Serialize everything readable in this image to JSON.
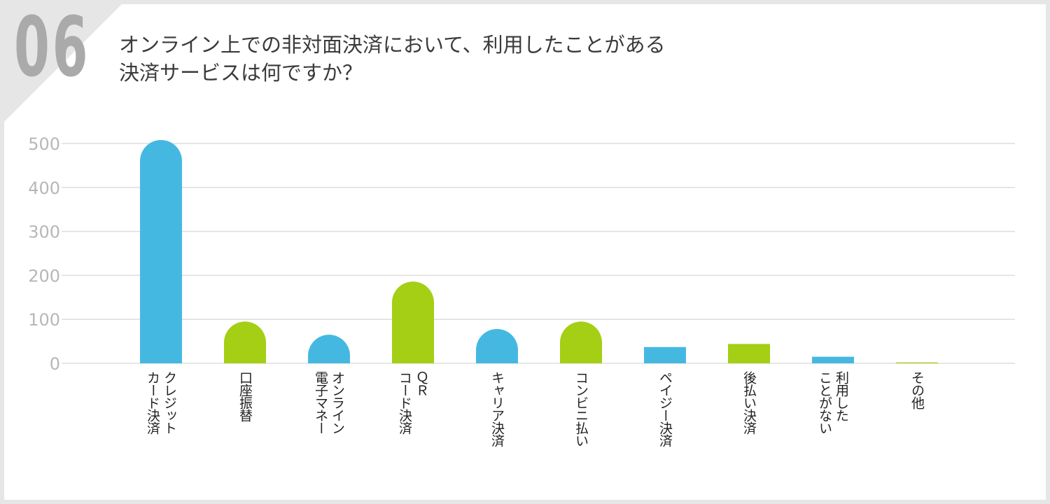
{
  "question_number": "06",
  "title_lines": [
    "オンライン上での非対面決済において、利用したことがある",
    "決済サービスは何ですか？"
  ],
  "colors": {
    "blue": "#45b8e2",
    "green": "#a4cf14",
    "grid": "#dedede",
    "tick": "#b7b7b7"
  },
  "chart_data": {
    "type": "bar",
    "title": "オンライン上での非対面決済において、利用したことがある決済サービスは何ですか？",
    "xlabel": "",
    "ylabel": "",
    "ylim": [
      0,
      500
    ],
    "yticks": [
      "0",
      "100",
      "200",
      "300",
      "400",
      "500"
    ],
    "grid": true,
    "legend": "none",
    "categories": [
      "クレジットカード決済",
      "口座振替",
      "オンライン電子マネー",
      "ＱＲコード決済",
      "キャリア決済",
      "コンビニ払い",
      "ペイジー決済",
      "後払い決済",
      "利用したことがない",
      "その他"
    ],
    "category_label_lines": [
      [
        "クレジット",
        "カード決済"
      ],
      [
        "口座振替"
      ],
      [
        "オンライン",
        "電子マネー"
      ],
      [
        "ＱＲ",
        "コード決済"
      ],
      [
        "キャリア決済"
      ],
      [
        "コンビニ払い"
      ],
      [
        "ペイジー決済"
      ],
      [
        "後払い決済"
      ],
      [
        "利用した",
        "ことがない"
      ],
      [
        "その他"
      ]
    ],
    "values": [
      508,
      95,
      65,
      186,
      78,
      95,
      37,
      44,
      15,
      2
    ],
    "bar_colors": [
      "#45b8e2",
      "#a4cf14",
      "#45b8e2",
      "#a4cf14",
      "#45b8e2",
      "#a4cf14",
      "#45b8e2",
      "#a4cf14",
      "#45b8e2",
      "#a4cf14"
    ]
  }
}
